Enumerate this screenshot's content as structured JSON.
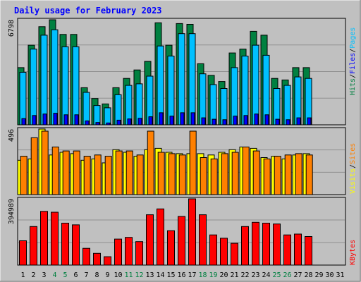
{
  "chart_data": {
    "type": "bar",
    "title": "Daily usage for February 2023",
    "categories": [
      "1",
      "2",
      "3",
      "4",
      "5",
      "6",
      "7",
      "8",
      "9",
      "10",
      "11",
      "12",
      "13",
      "14",
      "15",
      "16",
      "17",
      "18",
      "19",
      "20",
      "21",
      "22",
      "23",
      "24",
      "25",
      "26",
      "27",
      "28",
      "29",
      "30",
      "31"
    ],
    "weekend_days": [
      "4",
      "5",
      "11",
      "12",
      "18",
      "19",
      "25",
      "26"
    ],
    "colors": {
      "hits": "#008040",
      "files": "#00c0ff",
      "sites": "#ff8000",
      "visits": "#ffff00",
      "kbytes": "#ff0000",
      "title": "#0000ff",
      "weekday_label": "#000000",
      "weekend_label": "#008040"
    },
    "panels": [
      {
        "id": "top",
        "max_label": "6798",
        "ylim": [
          0,
          6798
        ],
        "axis_labels": [
          {
            "text": "Hits",
            "color": "#008040"
          },
          {
            "text": "/",
            "color": "#000000"
          },
          {
            "text": "Files",
            "color": "#0000ff"
          },
          {
            "text": "/",
            "color": "#000000"
          },
          {
            "text": "Pages",
            "color": "#00c0ff"
          }
        ],
        "series": [
          {
            "name": "Hits",
            "color": "#008040",
            "values": [
              3700,
              5150,
              6350,
              6798,
              5850,
              5850,
              2400,
              1700,
              1350,
              2400,
              3000,
              3550,
              4100,
              6600,
              5150,
              6550,
              6500,
              3950,
              3200,
              2800,
              4650,
              4900,
              6050,
              5800,
              3000,
              2900,
              3700,
              3700,
              0,
              0,
              0
            ]
          },
          {
            "name": "Files",
            "color": "#00c0ff",
            "values": [
              3400,
              4900,
              5800,
              6150,
              5050,
              5050,
              2100,
              1250,
              1100,
              1950,
              2550,
              2650,
              3150,
              5100,
              4450,
              5900,
              5900,
              3300,
              2600,
              2350,
              3700,
              4450,
              5150,
              4500,
              2350,
              2550,
              3100,
              3000,
              0,
              0,
              0
            ]
          },
          {
            "name": "Pages",
            "color": "#0000ff",
            "values": [
              400,
              600,
              700,
              750,
              650,
              650,
              250,
              150,
              120,
              300,
              380,
              420,
              520,
              780,
              560,
              780,
              780,
              450,
              360,
              330,
              560,
              600,
              700,
              650,
              360,
              330,
              450,
              450,
              0,
              0,
              0
            ]
          }
        ]
      },
      {
        "id": "middle",
        "max_label": "496",
        "ylim": [
          0,
          496
        ],
        "axis_labels": [
          {
            "text": "Visits",
            "color": "#ffff00"
          },
          {
            "text": "/",
            "color": "#000000"
          },
          {
            "text": "Sites",
            "color": "#ff8000"
          }
        ],
        "series": [
          {
            "name": "Visits",
            "color": "#ffff00",
            "values": [
              260,
              270,
              496,
              300,
              320,
              310,
              260,
              270,
              240,
              340,
              320,
              290,
              340,
              350,
              320,
              310,
              310,
              310,
              300,
              320,
              340,
              360,
              350,
              280,
              290,
              270,
              300,
              310,
              0,
              0,
              0
            ]
          },
          {
            "name": "Sites",
            "color": "#ff8000",
            "values": [
              290,
              430,
              480,
              360,
              330,
              330,
              290,
              300,
              290,
              330,
              330,
              300,
              480,
              320,
              310,
              300,
              480,
              280,
              270,
              310,
              320,
              360,
              330,
              270,
              290,
              300,
              310,
              300,
              0,
              0,
              0
            ]
          }
        ]
      },
      {
        "id": "bottom",
        "max_label": "394989",
        "ylim": [
          0,
          394989
        ],
        "axis_labels": [
          {
            "text": "KBytes",
            "color": "#ff0000"
          }
        ],
        "series": [
          {
            "name": "KBytes",
            "color": "#ff0000",
            "values": [
              145000,
              230000,
              320000,
              315000,
              250000,
              240000,
              100000,
              70000,
              50000,
              155000,
              165000,
              140000,
              300000,
              335000,
              205000,
              290000,
              394989,
              300000,
              180000,
              160000,
              130000,
              230000,
              255000,
              250000,
              245000,
              180000,
              185000,
              170000,
              0,
              0,
              0
            ]
          }
        ]
      }
    ]
  }
}
